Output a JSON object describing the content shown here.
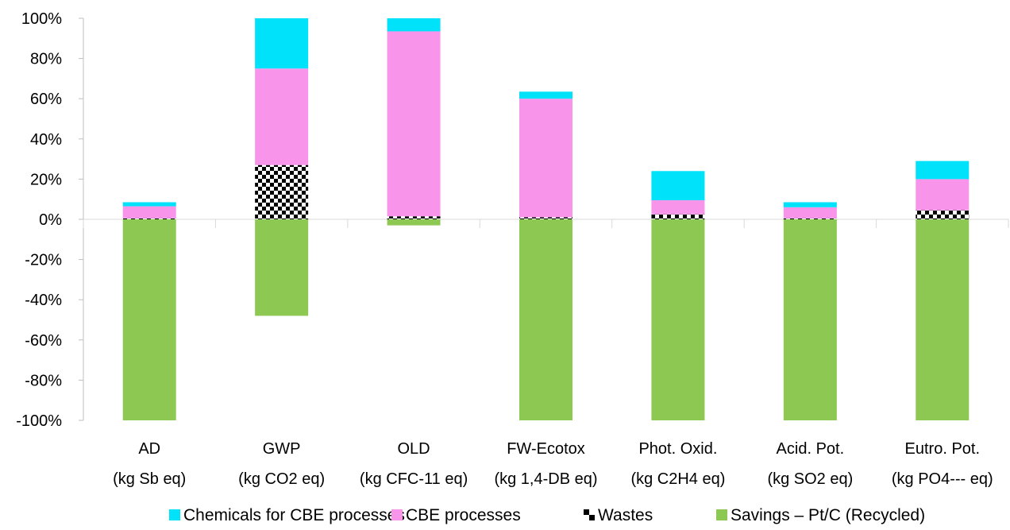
{
  "chart_data": {
    "type": "bar",
    "stacked": true,
    "categories": [
      {
        "name": "AD",
        "unit": "(kg Sb eq)"
      },
      {
        "name": "GWP",
        "unit": "(kg CO2 eq)"
      },
      {
        "name": "OLD",
        "unit": "(kg CFC-11 eq)"
      },
      {
        "name": "FW-Ecotox",
        "unit": "(kg 1,4-DB eq)"
      },
      {
        "name": "Phot. Oxid.",
        "unit": "(kg C2H4 eq)"
      },
      {
        "name": "Acid. Pot.",
        "unit": "(kg SO2 eq)"
      },
      {
        "name": "Eutro. Pot.",
        "unit": "(kg PO4--- eq)"
      }
    ],
    "ylim": [
      -100,
      100
    ],
    "yticks": [
      "-100%",
      "-80%",
      "-60%",
      "-40%",
      "-20%",
      "0%",
      "20%",
      "40%",
      "60%",
      "80%",
      "100%"
    ],
    "series": [
      {
        "name": "Savings – Pt/C (Recycled)",
        "color": "#8dc853",
        "pattern": "solid",
        "values": [
          -100,
          -48,
          -3,
          -100,
          -100,
          -100,
          -100
        ]
      },
      {
        "name": "Wastes",
        "color": "#000000",
        "pattern": "checkerboard",
        "values": [
          0.5,
          27,
          1.5,
          1,
          2.5,
          0.5,
          4.5
        ]
      },
      {
        "name": "CBE processes",
        "color": "#f994eb",
        "pattern": "solid",
        "values": [
          6,
          48,
          92,
          59,
          7,
          5.5,
          15.5
        ]
      },
      {
        "name": "Chemicals for CBE processes",
        "color": "#00e2f9",
        "pattern": "solid",
        "values": [
          2,
          25,
          6.5,
          3.5,
          14.5,
          2.5,
          9
        ]
      }
    ],
    "legend_order": [
      3,
      2,
      1,
      0
    ],
    "legend_position": "bottom",
    "grid": false
  }
}
